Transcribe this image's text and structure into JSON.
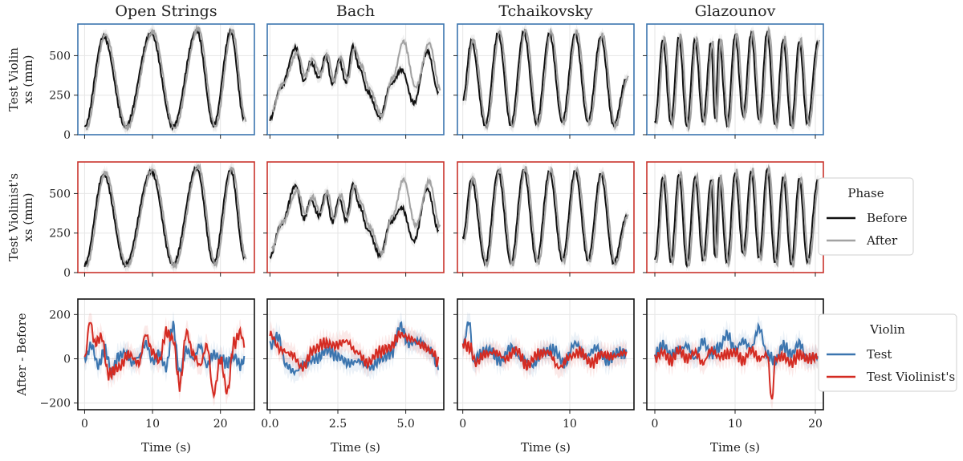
{
  "chart_data": {
    "type": "line",
    "columns": [
      "Open Strings",
      "Bach",
      "Tchaikovsky",
      "Glazounov"
    ],
    "row_labels": [
      [
        "Test Violin",
        "xs (mm)"
      ],
      [
        "Test Violinist's",
        "xs (mm)"
      ],
      [
        "After - Before"
      ]
    ],
    "xlabel": "Time (s)",
    "ylim_xs": [
      0,
      700
    ],
    "yticks_xs": [
      0,
      250,
      500
    ],
    "ylim_diff": [
      -230,
      270
    ],
    "yticks_diff": [
      -200,
      0,
      200
    ],
    "xlim": [
      [
        -1,
        25
      ],
      [
        -0.1,
        6.4
      ],
      [
        -0.5,
        16
      ],
      [
        -1,
        21
      ]
    ],
    "xticks": [
      [
        0,
        10,
        20
      ],
      [
        0.0,
        2.5,
        5.0
      ],
      [
        0,
        10
      ],
      [
        0,
        10,
        20
      ]
    ],
    "xtick_labels": [
      [
        "0",
        "10",
        "20"
      ],
      [
        "0.0",
        "2.5",
        "5.0"
      ],
      [
        "0",
        "10"
      ],
      [
        "0",
        "10",
        "20"
      ]
    ],
    "duration": [
      23.5,
      6.2,
      15.3,
      20.3
    ],
    "grid": true,
    "row_frame_colors": [
      "#3b75af",
      "#c9342c",
      "#111111"
    ],
    "colors": {
      "before": "#111111",
      "after": "#a2a2a2",
      "test": "#3b75af",
      "violinist": "#d42b22"
    },
    "legends": [
      {
        "title": "Phase",
        "entries": [
          "Before",
          "After"
        ],
        "placement": "right"
      },
      {
        "title": "Violin",
        "entries": [
          "Test",
          "Test Violinist's"
        ],
        "placement": "right"
      }
    ],
    "xs_series": {
      "open_strings": {
        "x": [
          0,
          2.8,
          6,
          9.8,
          13,
          16.5,
          19,
          21.5,
          23.5
        ],
        "y": [
          50,
          620,
          50,
          640,
          50,
          660,
          60,
          650,
          100
        ]
      },
      "bach": {
        "x": [
          0,
          0.4,
          0.95,
          1.25,
          1.5,
          1.8,
          2.05,
          2.3,
          2.55,
          2.8,
          3.05,
          3.3,
          3.6,
          4.05,
          4.45,
          4.85,
          5.3,
          5.8,
          6.2
        ],
        "y": [
          100,
          300,
          550,
          340,
          460,
          360,
          500,
          320,
          470,
          330,
          560,
          420,
          270,
          110,
          320,
          410,
          200,
          530,
          270
        ],
        "after_y": [
          150,
          320,
          520,
          370,
          480,
          380,
          510,
          340,
          490,
          350,
          550,
          440,
          290,
          120,
          360,
          590,
          300,
          580,
          290
        ]
      },
      "tchaikovsky": {
        "x": [
          0,
          0.8,
          2.1,
          3.3,
          4.5,
          5.7,
          6.9,
          8.1,
          9.3,
          10.5,
          11.7,
          12.9,
          14.1,
          15.3
        ],
        "y": [
          220,
          590,
          60,
          640,
          60,
          650,
          70,
          640,
          80,
          640,
          80,
          620,
          60,
          350
        ]
      },
      "glazounov": {
        "x": [
          0,
          1,
          2,
          3,
          4,
          5,
          6,
          7,
          7.5,
          8,
          9,
          10,
          11,
          12,
          13,
          14,
          15,
          16,
          17,
          18,
          19,
          20.3
        ],
        "y": [
          80,
          600,
          70,
          620,
          50,
          600,
          80,
          580,
          100,
          600,
          60,
          630,
          120,
          640,
          90,
          650,
          60,
          600,
          50,
          590,
          70,
          580
        ]
      }
    },
    "diff_series": {
      "open_strings": {
        "test": {
          "x": [
            0,
            1,
            2,
            3,
            4,
            5,
            6,
            7,
            8,
            9,
            10,
            11,
            12,
            13,
            14,
            15,
            16,
            17,
            18,
            19,
            20,
            21,
            22,
            23,
            23.5
          ],
          "y": [
            0,
            60,
            -30,
            40,
            -60,
            10,
            30,
            -20,
            10,
            70,
            -10,
            20,
            -40,
            150,
            -60,
            40,
            0,
            60,
            -30,
            20,
            0,
            -20,
            10,
            -30,
            0
          ]
        },
        "violinist": {
          "x": [
            0,
            0.8,
            1.5,
            2.5,
            3.5,
            5,
            6.5,
            8,
            9,
            10,
            11,
            12,
            13,
            14,
            15,
            16,
            17,
            18,
            19,
            20,
            21,
            22,
            23,
            23.5
          ],
          "y": [
            0,
            170,
            70,
            100,
            -70,
            -40,
            20,
            -20,
            110,
            30,
            -10,
            120,
            90,
            -120,
            120,
            20,
            -30,
            60,
            -160,
            0,
            -150,
            70,
            120,
            60
          ]
        }
      },
      "bach": {
        "test": {
          "x": [
            0,
            0.3,
            0.6,
            0.9,
            1.3,
            1.7,
            2.1,
            2.5,
            2.9,
            3.3,
            3.7,
            4.1,
            4.5,
            4.8,
            5.1,
            5.5,
            5.9,
            6.2
          ],
          "y": [
            60,
            100,
            -30,
            -60,
            -20,
            0,
            40,
            10,
            -20,
            -10,
            -40,
            0,
            30,
            150,
            70,
            80,
            40,
            -40
          ]
        },
        "violinist": {
          "x": [
            0,
            0.4,
            0.8,
            1.2,
            1.6,
            2.0,
            2.4,
            2.8,
            3.2,
            3.6,
            4.0,
            4.4,
            4.8,
            5.2,
            5.6,
            6.0,
            6.2
          ],
          "y": [
            110,
            40,
            20,
            -40,
            40,
            70,
            60,
            80,
            30,
            -20,
            30,
            50,
            110,
            90,
            60,
            30,
            -20
          ]
        }
      },
      "tchaikovsky": {
        "test": {
          "x": [
            0,
            0.6,
            1,
            1.5,
            2.5,
            3.5,
            4.5,
            5.5,
            6.5,
            7.5,
            8.5,
            9.5,
            10.5,
            11.5,
            12.5,
            13.5,
            14.5,
            15.3
          ],
          "y": [
            60,
            170,
            -20,
            20,
            40,
            -10,
            50,
            0,
            -30,
            30,
            40,
            -20,
            70,
            10,
            50,
            -10,
            30,
            20
          ]
        },
        "violinist": {
          "x": [
            0,
            0.7,
            1.2,
            2,
            3,
            4,
            5,
            6,
            7,
            8,
            9,
            10,
            11,
            12,
            13,
            14,
            15.3
          ],
          "y": [
            70,
            50,
            -20,
            20,
            30,
            0,
            40,
            -30,
            20,
            30,
            -40,
            10,
            30,
            -20,
            20,
            10,
            30
          ]
        }
      },
      "glazounov": {
        "test": {
          "x": [
            0,
            1,
            2,
            3,
            4,
            5,
            6,
            7,
            8,
            9,
            10,
            11,
            12,
            13,
            14,
            15,
            16,
            17,
            18,
            19,
            20.3
          ],
          "y": [
            20,
            60,
            20,
            40,
            60,
            0,
            80,
            20,
            50,
            110,
            40,
            80,
            50,
            140,
            20,
            -10,
            60,
            20,
            70,
            0,
            10
          ]
        },
        "violinist": {
          "x": [
            0,
            1,
            2,
            3,
            4,
            5,
            6,
            7,
            8,
            9,
            10,
            11,
            12,
            13,
            14,
            14.6,
            15,
            16,
            17,
            18,
            19,
            20.3
          ],
          "y": [
            0,
            30,
            -10,
            40,
            0,
            30,
            -20,
            40,
            10,
            20,
            30,
            -10,
            40,
            0,
            20,
            -190,
            0,
            10,
            -20,
            20,
            0,
            10
          ]
        }
      }
    }
  }
}
